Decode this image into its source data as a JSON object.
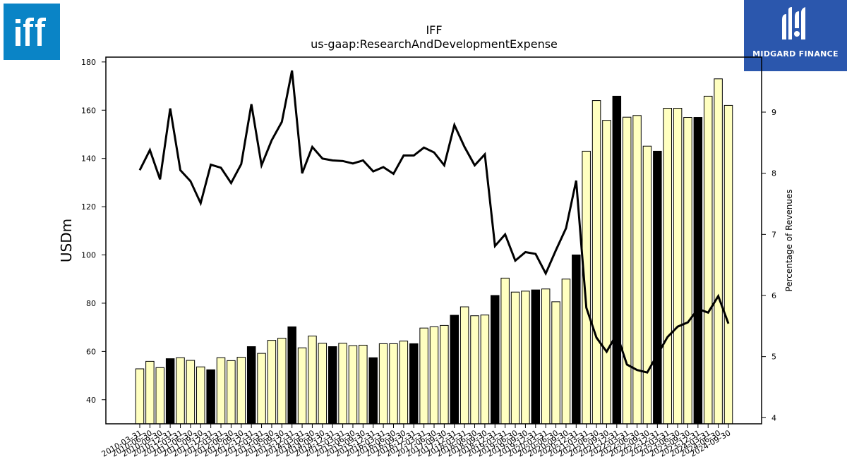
{
  "logos": {
    "left_alt": "iff",
    "right_text": "MIDGARD FINANCE"
  },
  "chart_data": {
    "type": "bar",
    "title": "IFF",
    "subtitle": "us-gaap:ResearchAndDevelopmentExpense",
    "ylabel": "USDm",
    "ylabel_right": "Percentage of Revenues",
    "ylim": [
      30,
      182
    ],
    "ylim_right": [
      3.9,
      9.9
    ],
    "yticks": [
      40,
      60,
      80,
      100,
      120,
      140,
      160,
      180
    ],
    "yticks_right": [
      4,
      5,
      6,
      7,
      8,
      9
    ],
    "grid": false,
    "colors": {
      "bar_quarter": "#ffffc0",
      "bar_year_end": "#000000",
      "bar_edge": "#000000",
      "line": "#000000"
    },
    "categories": [
      "2010-03-31",
      "2010-06-30",
      "2010-09-30",
      "2010-12-31",
      "2011-03-31",
      "2011-06-30",
      "2011-09-30",
      "2011-12-31",
      "2012-03-31",
      "2012-06-30",
      "2012-09-30",
      "2012-12-31",
      "2013-03-31",
      "2013-06-30",
      "2013-09-30",
      "2013-12-31",
      "2014-03-31",
      "2014-06-30",
      "2014-09-30",
      "2014-12-31",
      "2015-03-31",
      "2015-06-30",
      "2015-09-30",
      "2015-12-31",
      "2016-03-31",
      "2016-06-30",
      "2016-09-30",
      "2016-12-31",
      "2017-03-31",
      "2017-06-30",
      "2017-09-30",
      "2017-12-31",
      "2018-03-31",
      "2018-06-30",
      "2018-09-30",
      "2018-12-31",
      "2019-03-31",
      "2019-06-30",
      "2019-09-30",
      "2019-12-31",
      "2020-03-31",
      "2020-06-30",
      "2020-09-30",
      "2020-12-31",
      "2021-03-31",
      "2021-06-30",
      "2021-09-30",
      "2021-12-31",
      "2022-03-31",
      "2022-06-30",
      "2022-09-30",
      "2022-12-31",
      "2023-03-31",
      "2023-06-30",
      "2023-09-30",
      "2023-12-31",
      "2024-03-31",
      "2024-06-30",
      "2024-09-30"
    ],
    "series": [
      {
        "type": "bar",
        "values": [
          52.8,
          55.9,
          53.3,
          57.0,
          57.4,
          56.3,
          53.6,
          52.4,
          57.4,
          56.2,
          57.6,
          62.0,
          59.2,
          64.6,
          65.5,
          70.2,
          61.5,
          66.4,
          63.4,
          62.0,
          63.4,
          62.4,
          62.6,
          57.4,
          63.2,
          63.2,
          64.3,
          63.2,
          69.7,
          70.2,
          70.8,
          75.0,
          78.5,
          74.8,
          75.1,
          83.2,
          90.4,
          84.6,
          85.0,
          85.5,
          85.9,
          80.6,
          90.0,
          100.0,
          143.0,
          164.0,
          155.8,
          165.8,
          157.1,
          157.8,
          145.1,
          143.0,
          160.8,
          160.8,
          157.0,
          157.0,
          165.8,
          173.0,
          162.0
        ]
      },
      {
        "type": "line",
        "axis": "right",
        "values": [
          8.05,
          8.38,
          7.9,
          9.06,
          8.05,
          7.87,
          7.51,
          8.14,
          8.09,
          7.84,
          8.15,
          9.13,
          8.13,
          8.54,
          8.84,
          9.68,
          8.0,
          8.43,
          8.24,
          8.21,
          8.2,
          8.16,
          8.21,
          8.03,
          8.1,
          7.99,
          8.29,
          8.29,
          8.42,
          8.34,
          8.13,
          8.79,
          8.43,
          8.13,
          8.31,
          6.81,
          7.0,
          6.57,
          6.71,
          6.68,
          6.36,
          6.74,
          7.1,
          7.88,
          5.8,
          5.31,
          5.08,
          5.37,
          4.87,
          4.78,
          4.74,
          5.03,
          5.32,
          5.49,
          5.56,
          5.78,
          5.72,
          5.99,
          5.54
        ]
      }
    ]
  }
}
